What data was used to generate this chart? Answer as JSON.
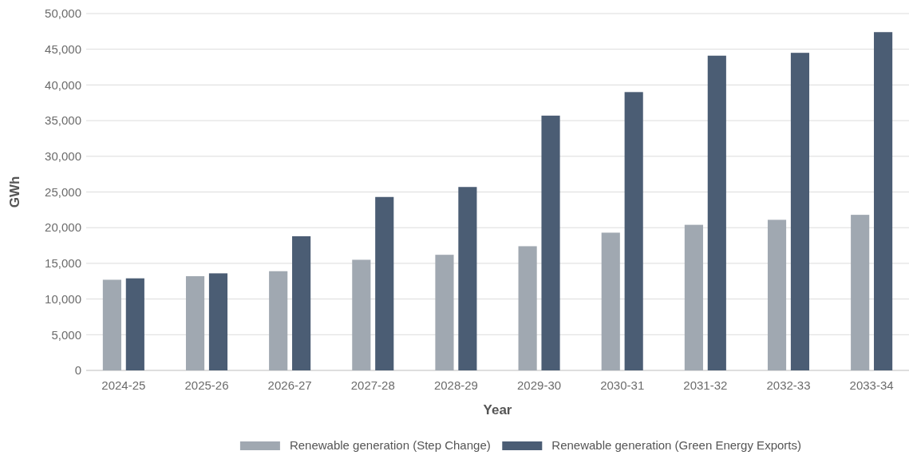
{
  "chart_data": {
    "type": "bar",
    "xlabel": "Year",
    "ylabel": "GWh",
    "categories": [
      "2024-25",
      "2025-26",
      "2026-27",
      "2027-28",
      "2028-29",
      "2029-30",
      "2030-31",
      "2031-32",
      "2032-33",
      "2033-34"
    ],
    "series": [
      {
        "name": "Renewable generation (Step Change)",
        "color": "#a0a8b1",
        "values": [
          12700,
          13200,
          13900,
          15500,
          16200,
          17400,
          19300,
          20400,
          21100,
          21800
        ]
      },
      {
        "name": "Renewable generation (Green Energy Exports)",
        "color": "#4b5d74",
        "values": [
          12900,
          13600,
          18800,
          24300,
          25700,
          35700,
          39000,
          44100,
          44500,
          47400
        ]
      }
    ],
    "ylim": [
      0,
      50000
    ],
    "yticks": [
      {
        "value": 0,
        "label": "0"
      },
      {
        "value": 5000,
        "label": "5,000"
      },
      {
        "value": 10000,
        "label": "10,000"
      },
      {
        "value": 15000,
        "label": "15,000"
      },
      {
        "value": 20000,
        "label": "20,000"
      },
      {
        "value": 25000,
        "label": "25,000"
      },
      {
        "value": 30000,
        "label": "30,000"
      },
      {
        "value": 35000,
        "label": "35,000"
      },
      {
        "value": 40000,
        "label": "40,000"
      },
      {
        "value": 45000,
        "label": "45,000"
      },
      {
        "value": 50000,
        "label": "50,000"
      }
    ],
    "grid": "y",
    "legend": "bottom"
  }
}
